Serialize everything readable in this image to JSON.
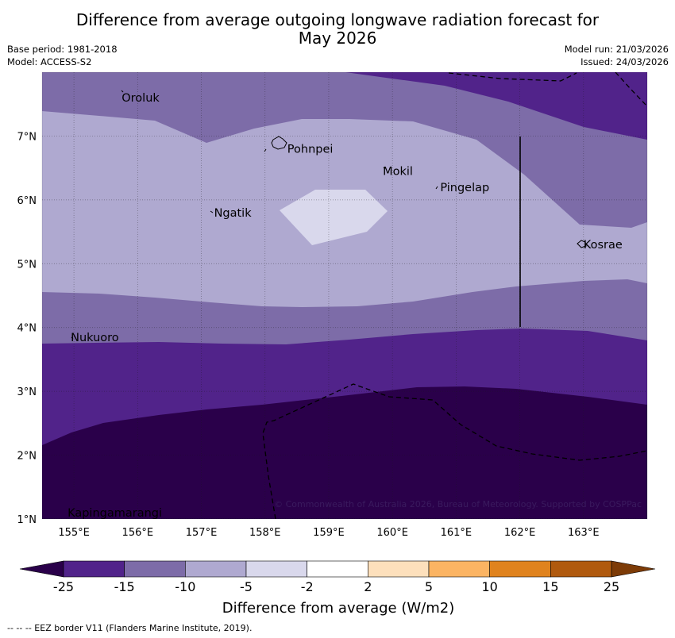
{
  "title": {
    "line1": "Difference from average outgoing longwave radiation forecast for",
    "line2": "May 2026"
  },
  "meta": {
    "base_period": "Base period: 1981-2018",
    "model": "Model: ACCESS-S2",
    "model_run": "Model run: 21/03/2026",
    "issued": "Issued: 24/03/2026"
  },
  "map": {
    "lon_range": [
      154.5,
      164.0
    ],
    "lat_range": [
      1.0,
      8.0
    ],
    "x_ticks": [
      155,
      156,
      157,
      158,
      159,
      160,
      161,
      162,
      163
    ],
    "x_tick_labels": [
      "155°E",
      "156°E",
      "157°E",
      "158°E",
      "159°E",
      "160°E",
      "161°E",
      "162°E",
      "163°E"
    ],
    "y_ticks": [
      1,
      2,
      3,
      4,
      5,
      6,
      7
    ],
    "y_tick_labels": [
      "1°N",
      "2°N",
      "3°N",
      "4°N",
      "5°N",
      "6°N",
      "7°N"
    ],
    "places": [
      {
        "name": "Oroluk",
        "lon": 155.75,
        "lat": 7.6
      },
      {
        "name": "Pohnpei",
        "lon": 158.35,
        "lat": 6.8
      },
      {
        "name": "Mokil",
        "lon": 159.85,
        "lat": 6.45
      },
      {
        "name": "Pingelap",
        "lon": 160.75,
        "lat": 6.2
      },
      {
        "name": "Ngatik",
        "lon": 157.2,
        "lat": 5.8
      },
      {
        "name": "Kosrae",
        "lon": 163.0,
        "lat": 5.3
      },
      {
        "name": "Nukuoro",
        "lon": 154.95,
        "lat": 3.85
      },
      {
        "name": "Kapingamarangi",
        "lon": 154.9,
        "lat": 1.1
      }
    ],
    "copyright": "© Commonwealth of Australia 2026, Bureau of Meteorology. Supported by COSPPac"
  },
  "colorbar": {
    "tick_labels": [
      "-25",
      "-15",
      "-10",
      "-5",
      "-2",
      "2",
      "5",
      "10",
      "15",
      "25"
    ],
    "colors": [
      "#51238a",
      "#7d6ca8",
      "#afa9d0",
      "#d9d8ec",
      "#ffffff",
      "#fde0bc",
      "#fbb463",
      "#e0831e",
      "#b05a0e"
    ],
    "under_color": "#2a004a",
    "over_color": "#7d3b07",
    "label": "Difference from average (W/m2)"
  },
  "colors": {
    "lt_minus25": "#2a004a",
    "m25_m15": "#51238a",
    "m15_m10": "#7d6ca8",
    "m10_m5": "#afa9d0",
    "m5_m2": "#d9d8ec"
  },
  "footnote": "--  --  -- EEZ border V11 (Flanders Marine Institute, 2019)."
}
